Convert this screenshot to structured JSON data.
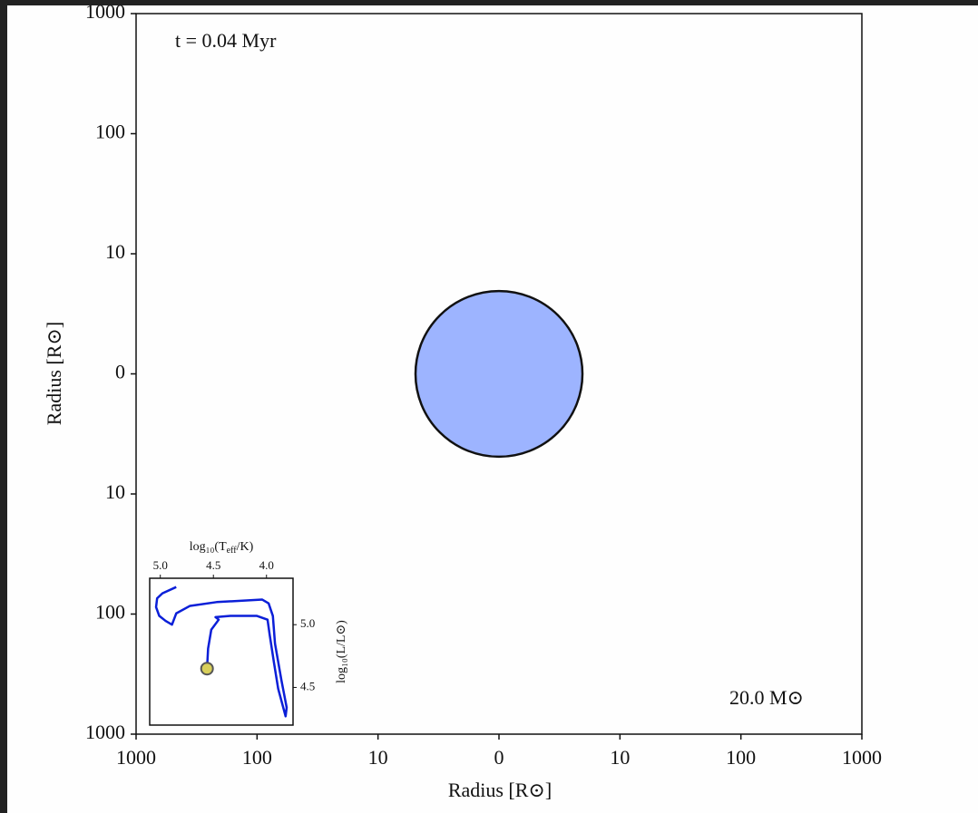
{
  "chart_data": [
    {
      "type": "star",
      "annotations": [
        "t = 0.04 Myr",
        "20.0 M⊙"
      ],
      "xlabel": "Radius [R⊙]",
      "ylabel": "Radius [R⊙]",
      "scale": "symlog",
      "linthresh": 10,
      "xlim": [
        -1000,
        1000
      ],
      "ylim": [
        -1000,
        1000
      ],
      "xticks": [
        {
          "value": -1000,
          "label": "1000"
        },
        {
          "value": -100,
          "label": "100"
        },
        {
          "value": -10,
          "label": "10"
        },
        0,
        10,
        100,
        1000
      ],
      "yticks": [
        {
          "value": -1000,
          "label": "1000"
        },
        {
          "value": -100,
          "label": "100"
        },
        {
          "value": -10,
          "label": "10"
        },
        0,
        10,
        100,
        1000
      ],
      "radius": 6.9,
      "color": "#9db4ff"
    },
    {
      "type": "line",
      "xlabel": {
        "base": "log₁₀(T",
        "sub": "eff",
        "tail": "/K)"
      },
      "ylabel": "log₁₀(L/L⊙)",
      "xlim": [
        5.1,
        3.75
      ],
      "ylim": [
        4.2,
        5.37
      ],
      "xticks": [
        {
          "value": 5,
          "label": "5.0"
        },
        4.5,
        {
          "value": 4,
          "label": "4.0"
        }
      ],
      "yticks": [
        {
          "value": 5,
          "label": "5.0"
        },
        4.5
      ],
      "series": [
        {
          "color": "#0b1fd8",
          "x": [
            4.56,
            4.55,
            4.52,
            4.45,
            4.48,
            4.34,
            4.09,
            3.99,
            3.97,
            3.93,
            3.89,
            3.82,
            3.81,
            3.86,
            3.92,
            3.94,
            3.98,
            4.04,
            4.47,
            4.72,
            4.85,
            4.89,
            4.95,
            5.01,
            5.04,
            5.03,
            4.98,
            4.85
          ],
          "values": [
            4.65,
            4.81,
            4.96,
            5.04,
            5.06,
            5.07,
            5.07,
            5.04,
            4.92,
            4.7,
            4.49,
            4.27,
            4.34,
            4.56,
            4.85,
            5.07,
            5.17,
            5.2,
            5.18,
            5.15,
            5.09,
            5.0,
            5.03,
            5.07,
            5.14,
            5.21,
            5.25,
            5.3
          ]
        }
      ],
      "current": {
        "x": 4.56,
        "y": 4.65,
        "color": "#d8cf5a"
      }
    }
  ]
}
